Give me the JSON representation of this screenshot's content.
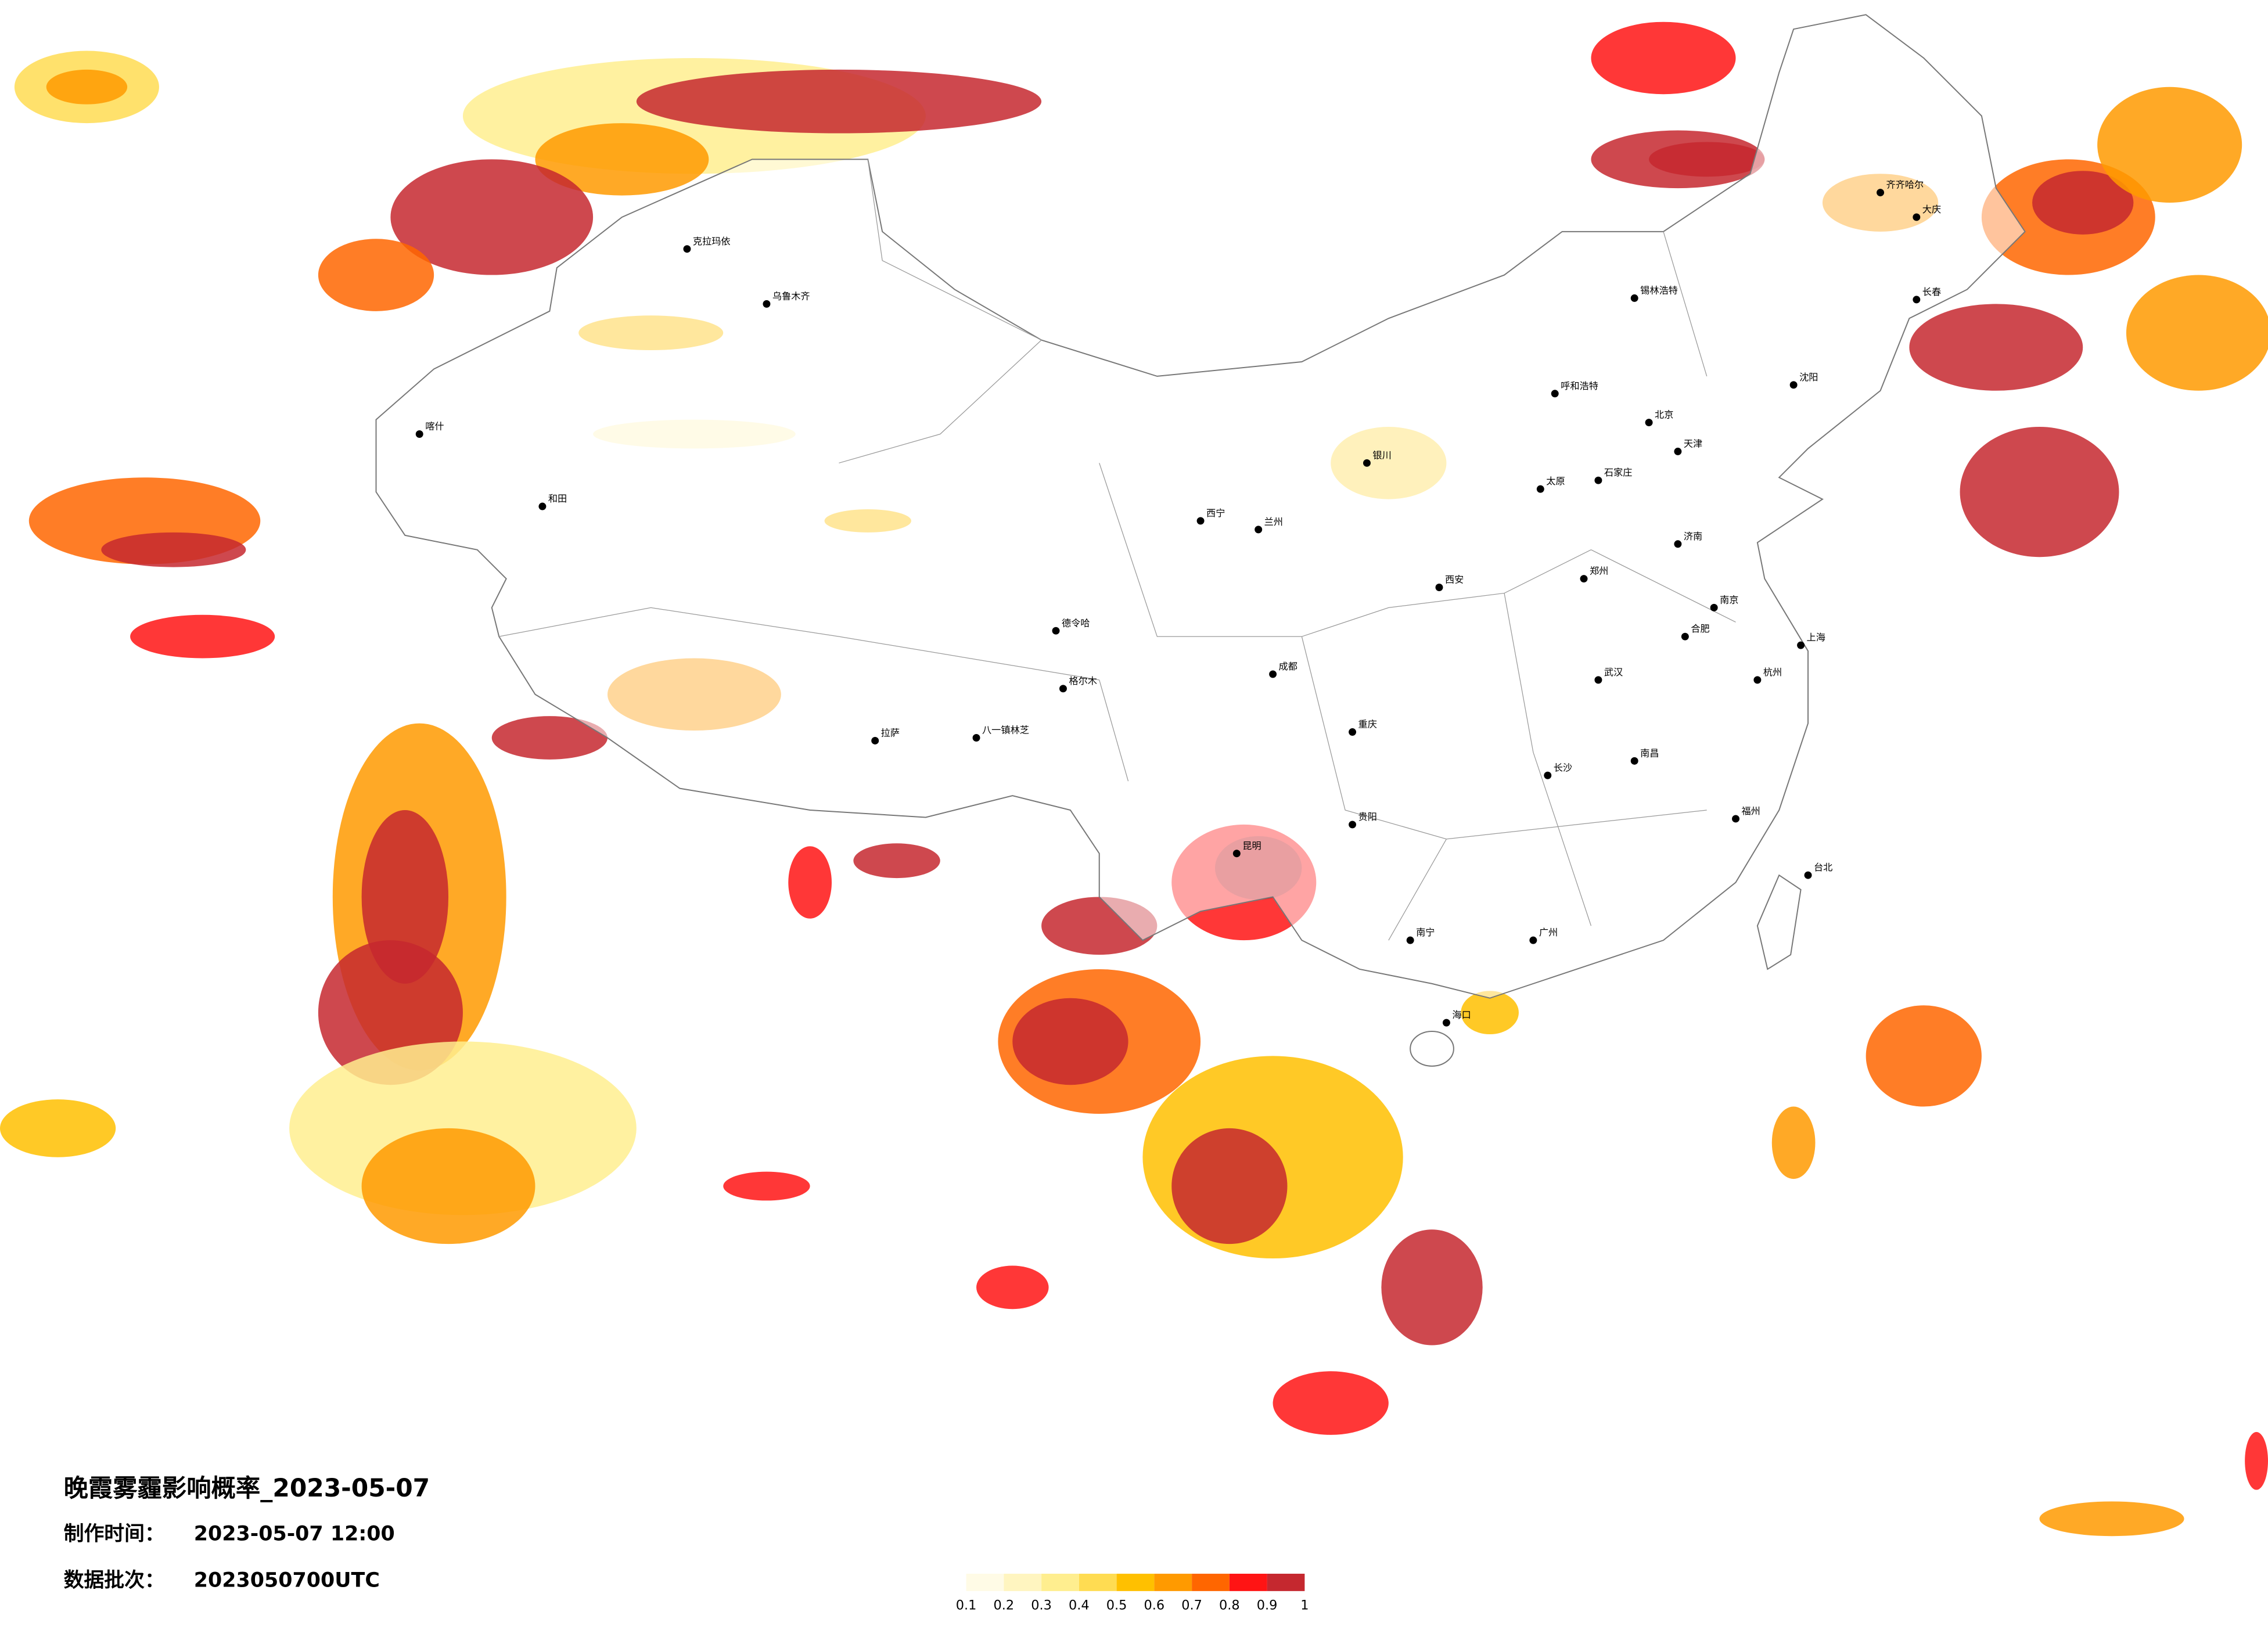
{
  "map": {
    "title": "晚霞雾霾影响概率_2023-05-07",
    "made_label": "制作时间：",
    "made_value": "2023-05-07 12:00",
    "batch_label": "数据批次：",
    "batch_value": "2023050700UTC",
    "legend": {
      "ticks": [
        0.1,
        0.2,
        0.3,
        0.4,
        0.5,
        0.6,
        0.7,
        0.8,
        0.9,
        1
      ],
      "colors": [
        "#fffbe6",
        "#fff5c0",
        "#ffee8f",
        "#ffdc52",
        "#ffc000",
        "#ff9a00",
        "#ff6600",
        "#ff1414",
        "#c5282f"
      ]
    },
    "cities": [
      "北京",
      "天津",
      "石家庄",
      "太原",
      "呼和浩特",
      "沈阳",
      "长春",
      "齐齐哈尔",
      "大庆",
      "济南",
      "郑州",
      "西安",
      "兰州",
      "西宁",
      "银川",
      "乌鲁木齐",
      "克拉玛依",
      "喀什",
      "和田",
      "格尔木",
      "拉萨",
      "八一镇林芝",
      "成都",
      "重庆",
      "贵阳",
      "昆明",
      "南宁",
      "广州",
      "福州",
      "南昌",
      "长沙",
      "武汉",
      "合肥",
      "南京",
      "杭州",
      "上海",
      "海口",
      "台北",
      "锡林浩特",
      "德令哈"
    ]
  }
}
